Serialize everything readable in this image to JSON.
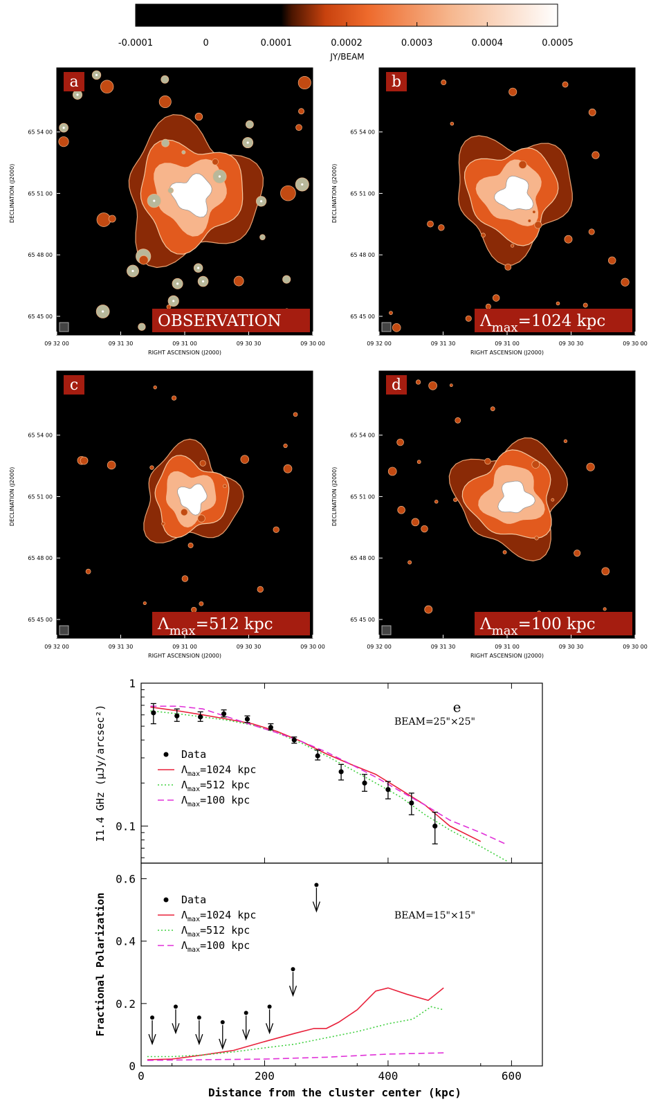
{
  "colorbar": {
    "ticks": [
      "-0.0001",
      "0",
      "0.0001",
      "0.0002",
      "0.0003",
      "0.0004",
      "0.0005"
    ],
    "label": "JY/BEAM",
    "colors": {
      "black": "#000000",
      "orange": "#e6501a",
      "white": "#ffffff"
    }
  },
  "maps": [
    {
      "id": "a",
      "letter": "a",
      "label_main": "OBSERVATION",
      "label_sub": "",
      "label_value": ""
    },
    {
      "id": "b",
      "letter": "b",
      "label_main": "Λ",
      "label_sub": "max",
      "label_value": "=1024 kpc"
    },
    {
      "id": "c",
      "letter": "c",
      "label_main": "Λ",
      "label_sub": "max",
      "label_value": "=512 kpc"
    },
    {
      "id": "d",
      "letter": "d",
      "label_main": "Λ",
      "label_sub": "max",
      "label_value": "=100 kpc"
    }
  ],
  "map_axes": {
    "xlabel": "RIGHT ASCENSION  (J2000)",
    "ylabel": "DECLINATION  (J2000)",
    "xticks": [
      "09 32 00",
      "09 31 30",
      "09 31 00",
      "09 30 30",
      "09 30 00"
    ],
    "yticks": [
      "65 54 00",
      "65 51 00",
      "65 48 00",
      "65 45 00"
    ]
  },
  "chart_data": [
    {
      "type": "line",
      "panel_letter": "e",
      "ylabel": "I1.4 GHz (μJy/arcsec²)",
      "yscale": "log",
      "ylim": [
        0.055,
        1.0
      ],
      "xlim": [
        0,
        650
      ],
      "yticks": [
        "1",
        "0.1"
      ],
      "annotation": "BEAM=25\"×25\"",
      "legend": {
        "placement": "center-left",
        "data_label": "Data",
        "entries": [
          {
            "prefix": "Λ",
            "sub": "max",
            "suffix": "=1024 kpc",
            "color": "#e8203a",
            "dash": "solid"
          },
          {
            "prefix": "Λ",
            "sub": "max",
            "suffix": "=512 kpc",
            "color": "#40d040",
            "dash": "dotted"
          },
          {
            "prefix": "Λ",
            "sub": "max",
            "suffix": "=100 kpc",
            "color": "#e030d8",
            "dash": "dashed"
          }
        ]
      },
      "points": [
        {
          "x": 20,
          "y": 0.62,
          "lo": 0.52,
          "hi": 0.72
        },
        {
          "x": 58,
          "y": 0.59,
          "lo": 0.54,
          "hi": 0.66
        },
        {
          "x": 96,
          "y": 0.58,
          "lo": 0.54,
          "hi": 0.63
        },
        {
          "x": 134,
          "y": 0.61,
          "lo": 0.58,
          "hi": 0.65
        },
        {
          "x": 172,
          "y": 0.56,
          "lo": 0.53,
          "hi": 0.59
        },
        {
          "x": 210,
          "y": 0.49,
          "lo": 0.47,
          "hi": 0.52
        },
        {
          "x": 248,
          "y": 0.4,
          "lo": 0.38,
          "hi": 0.42
        },
        {
          "x": 286,
          "y": 0.31,
          "lo": 0.29,
          "hi": 0.34
        },
        {
          "x": 324,
          "y": 0.24,
          "lo": 0.21,
          "hi": 0.27
        },
        {
          "x": 362,
          "y": 0.2,
          "lo": 0.175,
          "hi": 0.23
        },
        {
          "x": 400,
          "y": 0.18,
          "lo": 0.155,
          "hi": 0.205
        },
        {
          "x": 438,
          "y": 0.145,
          "lo": 0.12,
          "hi": 0.17
        },
        {
          "x": 476,
          "y": 0.1,
          "lo": 0.075,
          "hi": 0.125
        }
      ],
      "series": [
        {
          "name": "Λmax=1024 kpc",
          "color": "#e8203a",
          "x": [
            15,
            60,
            100,
            140,
            180,
            220,
            260,
            300,
            340,
            380,
            420,
            460,
            500,
            550
          ],
          "y": [
            0.68,
            0.64,
            0.6,
            0.56,
            0.52,
            0.46,
            0.39,
            0.32,
            0.27,
            0.23,
            0.18,
            0.14,
            0.1,
            0.078
          ]
        },
        {
          "name": "Λmax=512 kpc",
          "color": "#40d040",
          "x": [
            15,
            60,
            100,
            140,
            180,
            220,
            260,
            300,
            340,
            380,
            420,
            460,
            500,
            550,
            595
          ],
          "y": [
            0.64,
            0.61,
            0.58,
            0.55,
            0.51,
            0.45,
            0.38,
            0.31,
            0.25,
            0.2,
            0.16,
            0.12,
            0.094,
            0.072,
            0.056
          ]
        },
        {
          "name": "Λmax=100 kpc",
          "color": "#e030d8",
          "x": [
            15,
            60,
            100,
            140,
            180,
            220,
            260,
            300,
            340,
            380,
            420,
            460,
            500,
            550,
            590
          ],
          "y": [
            0.69,
            0.69,
            0.66,
            0.58,
            0.51,
            0.45,
            0.39,
            0.33,
            0.27,
            0.22,
            0.175,
            0.14,
            0.11,
            0.09,
            0.075
          ]
        }
      ]
    },
    {
      "type": "line",
      "ylabel": "Fractional Polarization",
      "xlabel": "Distance from the cluster center (kpc)",
      "xlim": [
        0,
        650
      ],
      "ylim": [
        0,
        0.65
      ],
      "xticks": [
        "0",
        "200",
        "400",
        "600"
      ],
      "xtick_values": [
        0,
        200,
        400,
        600
      ],
      "yticks": [
        "0",
        "0.2",
        "0.4",
        "0.6"
      ],
      "ytick_values": [
        0,
        0.2,
        0.4,
        0.6
      ],
      "annotation": "BEAM=15\"×15\"",
      "legend": {
        "placement": "top-left",
        "data_label": "Data",
        "entries": [
          {
            "prefix": "Λ",
            "sub": "max",
            "suffix": "=1024 kpc",
            "color": "#e8203a",
            "dash": "solid"
          },
          {
            "prefix": "Λ",
            "sub": "max",
            "suffix": "=512 kpc",
            "color": "#40d040",
            "dash": "dotted"
          },
          {
            "prefix": "Λ",
            "sub": "max",
            "suffix": "=100 kpc",
            "color": "#e030d8",
            "dash": "dashed"
          }
        ]
      },
      "upper_limits": [
        {
          "x": 18,
          "y": 0.155
        },
        {
          "x": 56,
          "y": 0.19
        },
        {
          "x": 94,
          "y": 0.155
        },
        {
          "x": 132,
          "y": 0.14
        },
        {
          "x": 170,
          "y": 0.17
        },
        {
          "x": 208,
          "y": 0.19
        },
        {
          "x": 246,
          "y": 0.31
        },
        {
          "x": 284,
          "y": 0.58
        }
      ],
      "series": [
        {
          "name": "Λmax=1024 kpc",
          "color": "#e8203a",
          "x": [
            10,
            50,
            100,
            150,
            200,
            250,
            280,
            300,
            320,
            350,
            380,
            400,
            430,
            465,
            490
          ],
          "y": [
            0.02,
            0.022,
            0.035,
            0.05,
            0.078,
            0.105,
            0.12,
            0.12,
            0.14,
            0.18,
            0.24,
            0.25,
            0.23,
            0.21,
            0.25
          ]
        },
        {
          "name": "Λmax=512 kpc",
          "color": "#40d040",
          "x": [
            10,
            50,
            100,
            150,
            200,
            250,
            300,
            350,
            400,
            440,
            470,
            490
          ],
          "y": [
            0.03,
            0.03,
            0.035,
            0.045,
            0.058,
            0.07,
            0.09,
            0.11,
            0.135,
            0.15,
            0.19,
            0.18
          ]
        },
        {
          "name": "Λmax=100 kpc",
          "color": "#e030d8",
          "x": [
            10,
            100,
            200,
            300,
            400,
            490
          ],
          "y": [
            0.018,
            0.02,
            0.022,
            0.028,
            0.038,
            0.042
          ]
        }
      ]
    }
  ]
}
